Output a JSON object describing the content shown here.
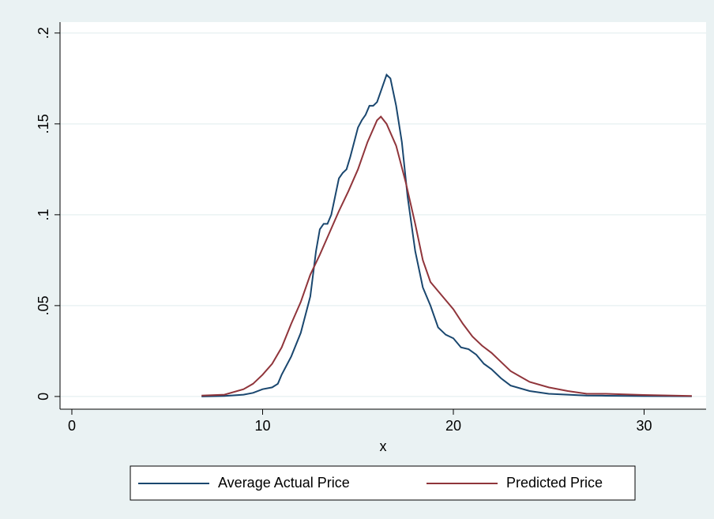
{
  "chart_data": {
    "type": "line",
    "xlabel": "x",
    "xlim": [
      -0.62,
      33.25
    ],
    "xticks": [
      0,
      10,
      20,
      30
    ],
    "ylim": [
      -0.007,
      0.206
    ],
    "yticks": [
      0,
      {
        "value": 0.05,
        "label": ".05"
      },
      {
        "value": 0.1,
        "label": ".1"
      },
      {
        "value": 0.15,
        "label": ".15"
      },
      {
        "value": 0.2,
        "label": ".2"
      }
    ],
    "grid": true,
    "legend": "bottom",
    "series": [
      {
        "name": "Average Actual Price",
        "color": "#1a476f",
        "x": [
          6.8,
          8,
          9,
          9.5,
          10,
          10.5,
          10.8,
          11,
          11.5,
          12,
          12.5,
          12.8,
          13,
          13.2,
          13.4,
          13.6,
          13.8,
          14,
          14.2,
          14.4,
          14.6,
          14.8,
          15,
          15.2,
          15.4,
          15.6,
          15.8,
          16,
          16.2,
          16.5,
          16.7,
          17,
          17.3,
          17.6,
          18,
          18.4,
          18.8,
          19.2,
          19.6,
          20,
          20.4,
          20.8,
          21.2,
          21.6,
          22,
          22.5,
          23,
          24,
          25,
          26,
          27,
          28,
          30,
          32.5
        ],
        "values": [
          0,
          0.0003,
          0.001,
          0.002,
          0.004,
          0.005,
          0.007,
          0.012,
          0.022,
          0.035,
          0.055,
          0.08,
          0.092,
          0.095,
          0.095,
          0.1,
          0.11,
          0.12,
          0.123,
          0.125,
          0.132,
          0.14,
          0.148,
          0.152,
          0.155,
          0.16,
          0.16,
          0.162,
          0.168,
          0.177,
          0.175,
          0.16,
          0.14,
          0.11,
          0.08,
          0.06,
          0.05,
          0.038,
          0.034,
          0.032,
          0.027,
          0.026,
          0.023,
          0.018,
          0.015,
          0.01,
          0.006,
          0.003,
          0.0015,
          0.001,
          0.0005,
          0.0004,
          0.0002,
          0.0001
        ]
      },
      {
        "name": "Predicted Price",
        "color": "#90353b",
        "x": [
          6.8,
          8,
          9,
          9.5,
          10,
          10.5,
          11,
          11.5,
          12,
          12.5,
          13,
          13.5,
          14,
          14.5,
          15,
          15.5,
          16,
          16.2,
          16.5,
          17,
          17.5,
          18,
          18.4,
          18.8,
          19.2,
          19.6,
          20,
          20.5,
          21,
          21.5,
          22,
          22.5,
          23,
          23.5,
          24,
          25,
          26,
          27,
          28,
          30,
          32.5
        ],
        "values": [
          0.0005,
          0.001,
          0.004,
          0.007,
          0.012,
          0.018,
          0.027,
          0.04,
          0.052,
          0.067,
          0.078,
          0.09,
          0.102,
          0.113,
          0.125,
          0.14,
          0.152,
          0.154,
          0.15,
          0.138,
          0.118,
          0.095,
          0.075,
          0.063,
          0.058,
          0.053,
          0.048,
          0.04,
          0.033,
          0.028,
          0.024,
          0.019,
          0.014,
          0.011,
          0.008,
          0.005,
          0.003,
          0.0015,
          0.0015,
          0.0008,
          0.0003
        ]
      }
    ]
  }
}
